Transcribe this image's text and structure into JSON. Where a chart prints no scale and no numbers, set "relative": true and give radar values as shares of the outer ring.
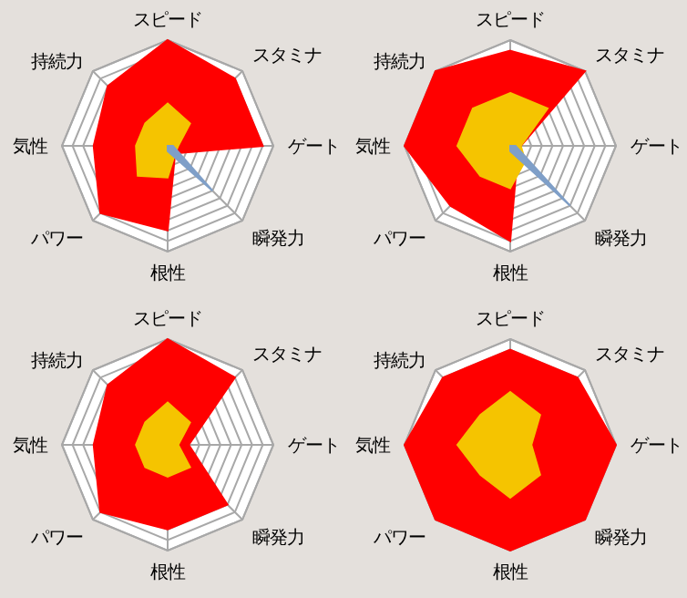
{
  "chart_data": [
    {
      "type": "radar",
      "relative": true,
      "grid": true,
      "categories": [
        "スピード",
        "スタミナ",
        "ゲート",
        "瞬発力",
        "根性",
        "パワー",
        "気性",
        "持続力"
      ],
      "series": [
        {
          "color": "#ff0000",
          "values": [
            1.0,
            0.9,
            0.9,
            0.1,
            0.8,
            0.9,
            0.7,
            0.8
          ]
        },
        {
          "color": "#f5c400",
          "values": [
            0.4,
            0.3,
            0.1,
            0.1,
            0.3,
            0.4,
            0.3,
            0.3
          ]
        },
        {
          "color": "#7f9fc8",
          "values": [
            0,
            0,
            0.05,
            0.6,
            0.05,
            0,
            0,
            0
          ]
        }
      ]
    },
    {
      "type": "radar",
      "relative": true,
      "grid": true,
      "categories": [
        "スピード",
        "スタミナ",
        "ゲート",
        "瞬発力",
        "根性",
        "パワー",
        "気性",
        "持続力"
      ],
      "series": [
        {
          "color": "#ff0000",
          "values": [
            0.9,
            1.0,
            0.1,
            0.1,
            0.9,
            0.8,
            1.0,
            1.0
          ]
        },
        {
          "color": "#f5c400",
          "values": [
            0.5,
            0.5,
            0.1,
            0.2,
            0.4,
            0.4,
            0.5,
            0.5
          ]
        },
        {
          "color": "#7f9fc8",
          "values": [
            0,
            0,
            0.05,
            0.8,
            0.05,
            0,
            0,
            0
          ]
        }
      ]
    },
    {
      "type": "radar",
      "relative": true,
      "grid": true,
      "categories": [
        "スピード",
        "スタミナ",
        "ゲート",
        "瞬発力",
        "根性",
        "パワー",
        "気性",
        "持続力"
      ],
      "series": [
        {
          "color": "#ff0000",
          "values": [
            1.0,
            0.9,
            0.2,
            0.8,
            0.8,
            0.9,
            0.7,
            0.8
          ]
        },
        {
          "color": "#f5c400",
          "values": [
            0.4,
            0.3,
            0.1,
            0.3,
            0.3,
            0.3,
            0.3,
            0.3
          ]
        }
      ]
    },
    {
      "type": "radar",
      "relative": true,
      "grid": true,
      "categories": [
        "スピード",
        "スタミナ",
        "ゲート",
        "瞬発力",
        "根性",
        "パワー",
        "気性",
        "持続力"
      ],
      "series": [
        {
          "color": "#ff0000",
          "values": [
            0.9,
            0.9,
            1.0,
            1.0,
            1.0,
            1.0,
            1.0,
            0.9
          ]
        },
        {
          "color": "#f5c400",
          "values": [
            0.5,
            0.4,
            0.2,
            0.4,
            0.5,
            0.4,
            0.5,
            0.4
          ]
        }
      ]
    }
  ]
}
